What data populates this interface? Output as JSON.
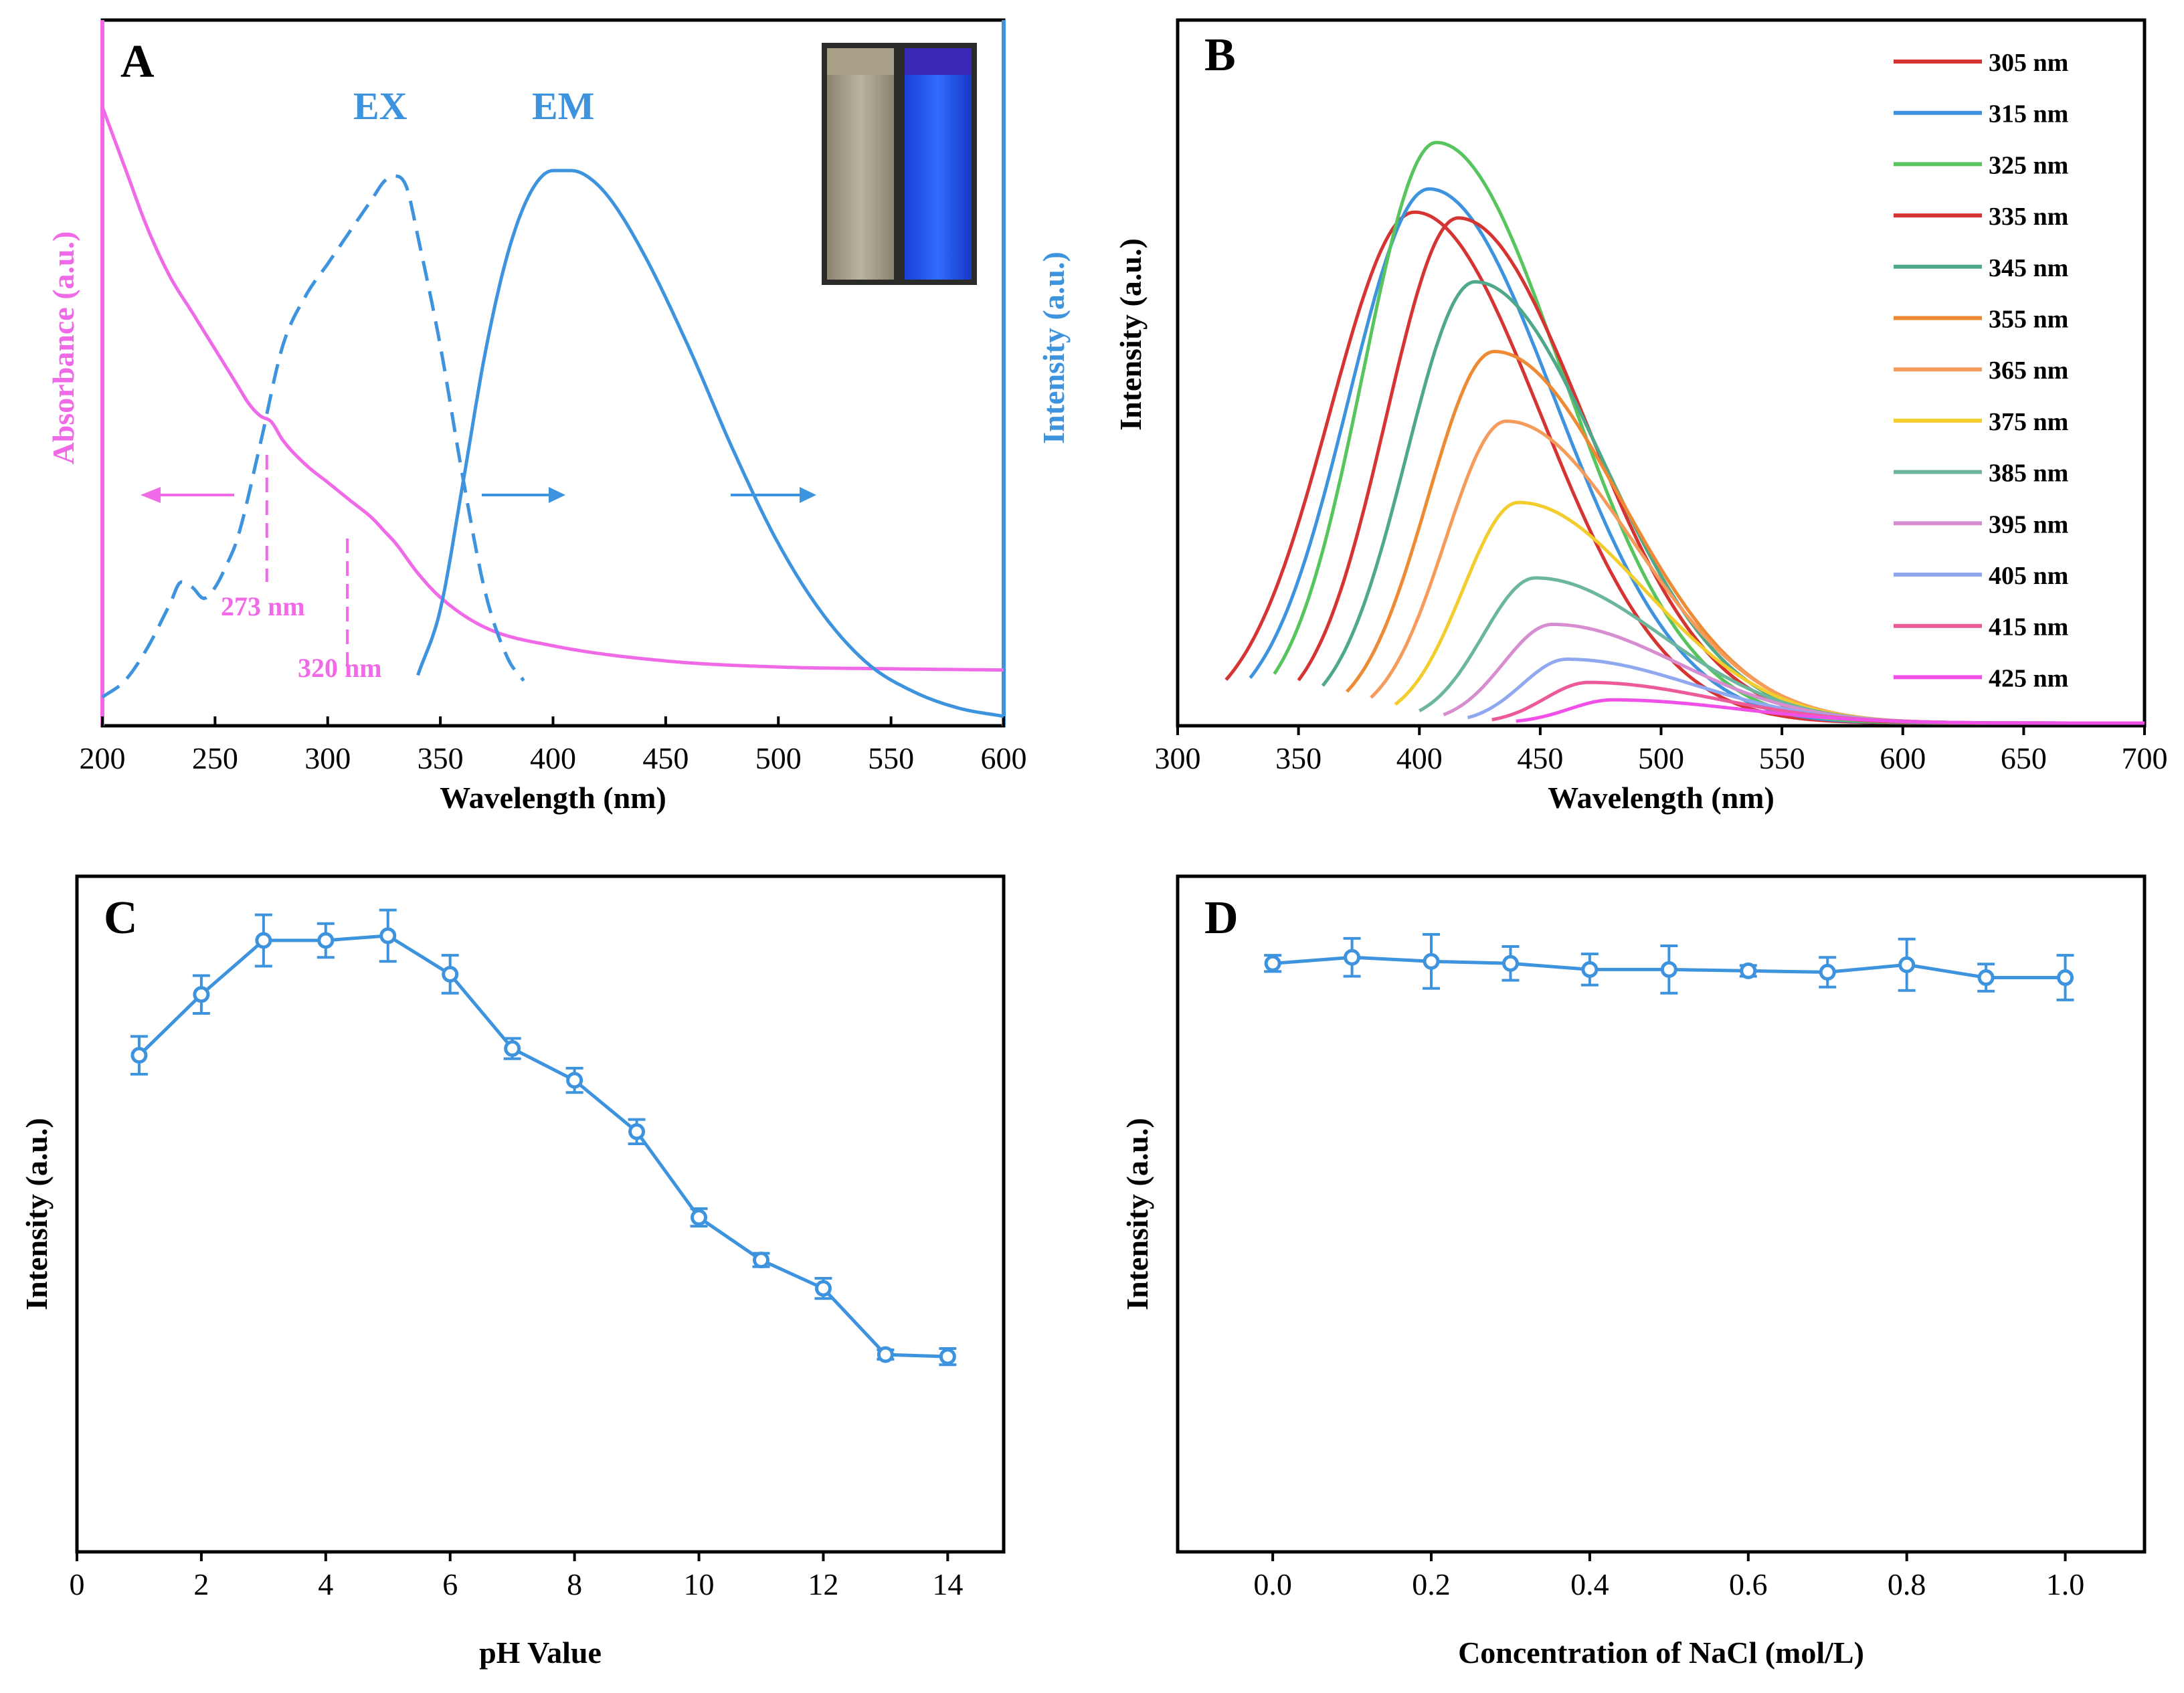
{
  "chart_data": [
    {
      "panel": "A",
      "type": "line",
      "xlabel": "Wavelength (nm)",
      "ylabel_left": "Absorbance (a.u.)",
      "ylabel_right": "Intensity (a.u.)",
      "xlim": [
        200,
        600
      ],
      "xticks": [
        "200",
        "250",
        "300",
        "350",
        "400",
        "450",
        "500",
        "550",
        "600"
      ],
      "colors": {
        "absorbance": "#f06ae8",
        "fluorescence": "#3d93dd"
      },
      "series": [
        {
          "name": "Absorbance",
          "color": "#f06ae8",
          "style": "solid",
          "axis": "left",
          "x": [
            200,
            205,
            210,
            220,
            230,
            240,
            250,
            260,
            265,
            270,
            275,
            280,
            290,
            300,
            310,
            320,
            325,
            330,
            340,
            350,
            370,
            400,
            450,
            500,
            550,
            600
          ],
          "y": [
            1.0,
            0.95,
            0.9,
            0.8,
            0.72,
            0.66,
            0.6,
            0.54,
            0.51,
            0.49,
            0.48,
            0.45,
            0.41,
            0.38,
            0.35,
            0.32,
            0.3,
            0.28,
            0.23,
            0.19,
            0.14,
            0.11,
            0.085,
            0.075,
            0.072,
            0.07
          ]
        },
        {
          "name": "EX",
          "color": "#3d93dd",
          "style": "dashed",
          "axis": "right",
          "x": [
            200,
            210,
            220,
            230,
            235,
            240,
            245,
            250,
            255,
            260,
            270,
            280,
            290,
            300,
            310,
            320,
            325,
            330,
            335,
            340,
            350,
            360,
            370,
            380,
            387
          ],
          "y": [
            0.04,
            0.07,
            0.13,
            0.21,
            0.25,
            0.24,
            0.22,
            0.24,
            0.28,
            0.33,
            0.5,
            0.68,
            0.77,
            0.83,
            0.89,
            0.95,
            0.98,
            0.99,
            0.97,
            0.88,
            0.68,
            0.44,
            0.23,
            0.11,
            0.07
          ]
        },
        {
          "name": "EM",
          "color": "#3d93dd",
          "style": "solid",
          "axis": "right",
          "x": [
            340,
            350,
            360,
            370,
            380,
            390,
            400,
            408,
            415,
            425,
            440,
            460,
            480,
            500,
            520,
            540,
            560,
            580,
            600
          ],
          "y": [
            0.08,
            0.2,
            0.43,
            0.67,
            0.85,
            0.96,
            1.0,
            1.0,
            0.99,
            0.95,
            0.85,
            0.68,
            0.49,
            0.32,
            0.19,
            0.1,
            0.05,
            0.02,
            0.005
          ]
        }
      ],
      "annotations": [
        "EX",
        "EM",
        "273 nm",
        "320 nm"
      ],
      "marker_lines_nm": [
        273,
        320
      ],
      "inset": "photo of two cuvettes: daylight (pale yellow) and UV (blue fluorescence)"
    },
    {
      "panel": "B",
      "type": "line",
      "xlabel": "Wavelength (nm)",
      "ylabel": "Intensity (a.u.)",
      "xlim": [
        300,
        700
      ],
      "xticks": [
        "300",
        "350",
        "400",
        "450",
        "500",
        "550",
        "600",
        "650",
        "700"
      ],
      "series": [
        {
          "name": "305 nm",
          "color": "#d63333",
          "start": 320,
          "peak": 398,
          "height": 0.88
        },
        {
          "name": "315 nm",
          "color": "#3d93dd",
          "start": 330,
          "peak": 404,
          "height": 0.92
        },
        {
          "name": "325 nm",
          "color": "#57c45e",
          "start": 340,
          "peak": 407,
          "height": 1.0
        },
        {
          "name": "335 nm",
          "color": "#d63333",
          "start": 350,
          "peak": 416,
          "height": 0.87
        },
        {
          "name": "345 nm",
          "color": "#4fa88a",
          "start": 360,
          "peak": 423,
          "height": 0.76
        },
        {
          "name": "355 nm",
          "color": "#ee8a33",
          "start": 370,
          "peak": 431,
          "height": 0.64
        },
        {
          "name": "365 nm",
          "color": "#f59c5c",
          "start": 380,
          "peak": 436,
          "height": 0.52
        },
        {
          "name": "375 nm",
          "color": "#f2cd2c",
          "start": 390,
          "peak": 441,
          "height": 0.38
        },
        {
          "name": "385 nm",
          "color": "#6cb59f",
          "start": 400,
          "peak": 448,
          "height": 0.25
        },
        {
          "name": "395 nm",
          "color": "#d68ed0",
          "start": 410,
          "peak": 455,
          "height": 0.17
        },
        {
          "name": "405 nm",
          "color": "#8fa8f0",
          "start": 420,
          "peak": 461,
          "height": 0.11
        },
        {
          "name": "415 nm",
          "color": "#ec5a9a",
          "start": 430,
          "peak": 470,
          "height": 0.07
        },
        {
          "name": "425 nm",
          "color": "#f050e8",
          "start": 440,
          "peak": 480,
          "height": 0.04
        }
      ],
      "legend": "right"
    },
    {
      "panel": "C",
      "type": "line",
      "xlabel": "pH Value",
      "ylabel": "Intensity (a.u.)",
      "xlim": [
        0,
        14.9
      ],
      "ylim": [
        0,
        1
      ],
      "xticks": [
        "0",
        "2",
        "4",
        "6",
        "8",
        "10",
        "12",
        "14"
      ],
      "color": "#3d93dd",
      "x": [
        1,
        2,
        3,
        4,
        5,
        6,
        7,
        8,
        9,
        10,
        11,
        12,
        13,
        14
      ],
      "y": [
        0.735,
        0.825,
        0.905,
        0.905,
        0.912,
        0.855,
        0.745,
        0.698,
        0.622,
        0.495,
        0.432,
        0.39,
        0.292,
        0.289
      ],
      "err": [
        0.028,
        0.028,
        0.038,
        0.025,
        0.038,
        0.028,
        0.015,
        0.018,
        0.018,
        0.013,
        0.01,
        0.015,
        0.007,
        0.012
      ]
    },
    {
      "panel": "D",
      "type": "line",
      "xlabel": "Concentration of NaCl (mol/L)",
      "ylabel": "Intensity (a.u.)",
      "xlim": [
        -0.12,
        1.1
      ],
      "ylim": [
        0,
        1
      ],
      "xticks": [
        "0.0",
        "0.2",
        "0.4",
        "0.6",
        "0.8",
        "1.0"
      ],
      "color": "#3d93dd",
      "x": [
        0.0,
        0.1,
        0.2,
        0.3,
        0.4,
        0.5,
        0.6,
        0.7,
        0.8,
        0.9,
        1.0
      ],
      "y": [
        0.871,
        0.88,
        0.874,
        0.871,
        0.862,
        0.862,
        0.86,
        0.858,
        0.869,
        0.85,
        0.85
      ],
      "err": [
        0.012,
        0.028,
        0.04,
        0.025,
        0.023,
        0.035,
        0.008,
        0.022,
        0.038,
        0.02,
        0.033
      ]
    }
  ]
}
